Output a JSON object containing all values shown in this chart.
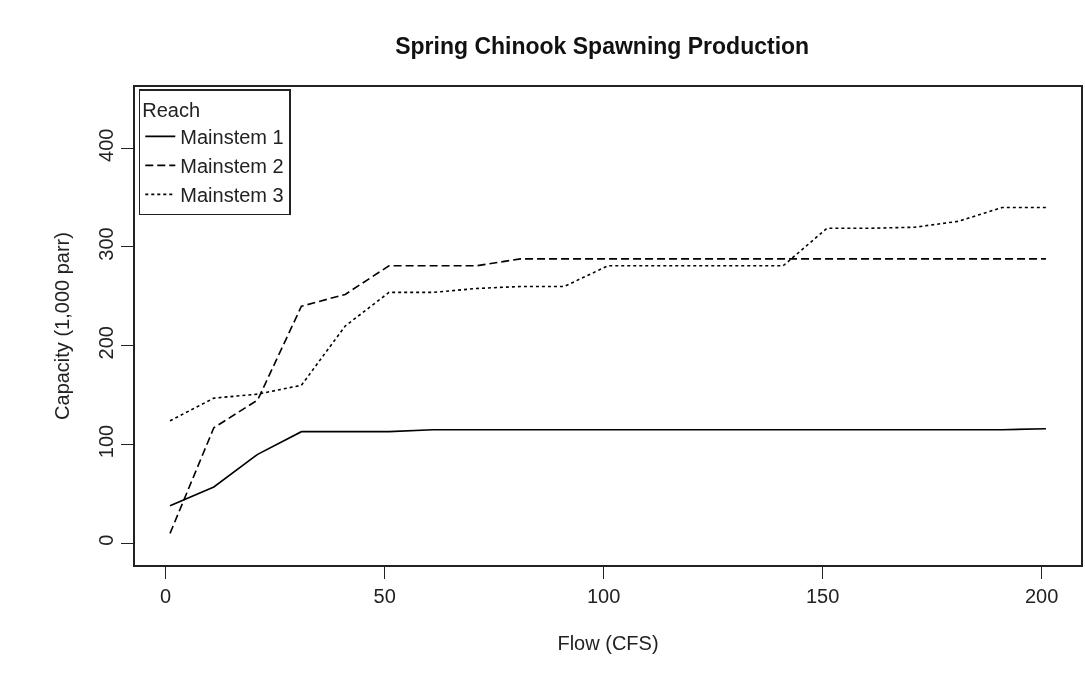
{
  "chart_data": {
    "type": "line",
    "title": "Spring Chinook Spawning Production",
    "xlabel": "Flow (CFS)",
    "ylabel": "Capacity (1,000 parr)",
    "legend_title": "Reach",
    "legend": "top left",
    "grid": false,
    "marker": "none",
    "x": [
      1,
      11,
      21,
      31,
      41,
      51,
      61,
      71,
      81,
      91,
      101,
      111,
      121,
      131,
      141,
      151,
      161,
      171,
      181,
      191,
      201
    ],
    "series": [
      {
        "name": "Mainstem 1",
        "color": "#000000",
        "line_style": "solid",
        "values": [
          38,
          57,
          90,
          113,
          113,
          113,
          115,
          115,
          115,
          115,
          115,
          115,
          115,
          115,
          115,
          115,
          115,
          115,
          115,
          115,
          116
        ]
      },
      {
        "name": "Mainstem 2",
        "color": "#000000",
        "line_style": "dashed",
        "values": [
          10,
          117,
          145,
          240,
          252,
          281,
          281,
          281,
          288,
          288,
          288,
          288,
          288,
          288,
          288,
          288,
          288,
          288,
          288,
          288,
          288
        ]
      },
      {
        "name": "Mainstem 3",
        "color": "#000000",
        "line_style": "dotted",
        "values": [
          124,
          147,
          151,
          160,
          220,
          254,
          254,
          258,
          260,
          260,
          281,
          281,
          281,
          281,
          281,
          319,
          319,
          320,
          326,
          340,
          340
        ]
      }
    ],
    "xlim": [
      -7,
      209
    ],
    "xticks": [
      0,
      50,
      100,
      150,
      200
    ],
    "ylim": [
      -22,
      462
    ],
    "yticks": [
      0,
      100,
      200,
      300,
      400
    ]
  }
}
